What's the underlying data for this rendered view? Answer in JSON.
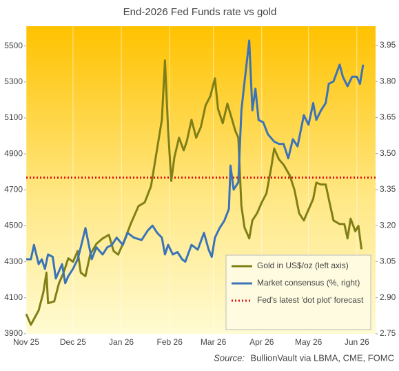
{
  "chart_data": {
    "type": "line",
    "title": "End-2026 Fed Funds rate vs gold",
    "source_label": "Source:",
    "source": "BullionVault via LBMA, CME, FOMC",
    "xlim": [
      0,
      224
    ],
    "xticks": [
      {
        "value": 0,
        "label": "Nov 25"
      },
      {
        "value": 30,
        "label": "Dec 25"
      },
      {
        "value": 61,
        "label": "Jan 26"
      },
      {
        "value": 92,
        "label": "Feb 26"
      },
      {
        "value": 120,
        "label": "Mar 26"
      },
      {
        "value": 151,
        "label": "Apr 26"
      },
      {
        "value": 181,
        "label": "May 26"
      },
      {
        "value": 212,
        "label": "Jun 26"
      }
    ],
    "ylim": [
      3900,
      5610
    ],
    "yticks": [
      3900,
      4100,
      4300,
      4500,
      4700,
      4900,
      5100,
      5300,
      5500
    ],
    "y2lim": [
      2.75,
      4.03
    ],
    "y2ticks": [
      2.75,
      {
        "value": 2.9,
        "label": "2.90"
      },
      3.05,
      {
        "value": 3.2,
        "label": "3.20"
      },
      3.35,
      {
        "value": 3.5,
        "label": "3.50"
      },
      3.65,
      {
        "value": 3.8,
        "label": "3.80"
      },
      3.95
    ],
    "grid": true,
    "legend": "lower right",
    "series": [
      {
        "name": "Gold in US$/oz (left axis)",
        "color": "#7f7f17",
        "axis": "y",
        "x": [
          0,
          3,
          8,
          11,
          13,
          14,
          18,
          21,
          24,
          27,
          30,
          33,
          35,
          38,
          41,
          45,
          49,
          53,
          56,
          59,
          63,
          67,
          72,
          76,
          80,
          84,
          87,
          89,
          91,
          93,
          95,
          98,
          101,
          103,
          106,
          109,
          112,
          115,
          118,
          121,
          123,
          126,
          129,
          132,
          134,
          136,
          138,
          140,
          143,
          145,
          148,
          151,
          154,
          157,
          159,
          162,
          165,
          169,
          172,
          175,
          178,
          181,
          184,
          186,
          189,
          192,
          194,
          197,
          201,
          204,
          206,
          208,
          211,
          213,
          215
        ],
        "values": [
          4010,
          3950,
          4030,
          4130,
          4240,
          4070,
          4080,
          4180,
          4240,
          4320,
          4300,
          4360,
          4240,
          4220,
          4340,
          4400,
          4430,
          4450,
          4360,
          4340,
          4420,
          4510,
          4610,
          4630,
          4720,
          4930,
          5090,
          5420,
          5030,
          4750,
          4880,
          4990,
          4920,
          4970,
          5090,
          4990,
          5050,
          5170,
          5220,
          5320,
          5150,
          5070,
          5180,
          5090,
          5030,
          4990,
          4610,
          4490,
          4430,
          4530,
          4570,
          4630,
          4680,
          4820,
          4930,
          4870,
          4840,
          4780,
          4700,
          4570,
          4530,
          4590,
          4650,
          4740,
          4730,
          4730,
          4650,
          4530,
          4510,
          4510,
          4430,
          4540,
          4470,
          4500,
          4370
        ]
      },
      {
        "name": "Market consensus (%, right)",
        "color": "#3a73b8",
        "axis": "y2",
        "x": [
          0,
          3,
          5,
          8,
          10,
          12,
          14,
          17,
          19,
          23,
          25,
          27,
          30,
          33,
          35,
          38,
          42,
          45,
          49,
          52,
          55,
          58,
          62,
          65,
          69,
          74,
          78,
          81,
          84,
          87,
          89,
          91,
          94,
          97,
          100,
          102,
          106,
          110,
          114,
          117,
          119,
          121,
          124,
          127,
          130,
          131,
          133,
          136,
          138,
          140,
          143,
          145,
          147,
          149,
          152,
          155,
          159,
          162,
          165,
          168,
          171,
          174,
          178,
          181,
          184,
          186,
          189,
          192,
          194,
          197,
          201,
          203,
          206,
          209,
          212,
          214,
          216
        ],
        "values": [
          3.06,
          3.06,
          3.12,
          3.04,
          3.06,
          3.02,
          3.08,
          3.07,
          2.98,
          3.04,
          2.96,
          2.99,
          3.02,
          3.06,
          3.11,
          3.19,
          3.06,
          3.11,
          3.08,
          3.11,
          3.12,
          3.15,
          3.12,
          3.17,
          3.15,
          3.14,
          3.18,
          3.2,
          3.17,
          3.15,
          3.08,
          3.12,
          3.08,
          3.09,
          3.06,
          3.05,
          3.12,
          3.1,
          3.17,
          3.1,
          3.07,
          3.15,
          3.19,
          3.22,
          3.27,
          3.45,
          3.35,
          3.38,
          3.68,
          3.8,
          3.97,
          3.68,
          3.77,
          3.64,
          3.63,
          3.58,
          3.55,
          3.54,
          3.54,
          3.48,
          3.56,
          3.53,
          3.66,
          3.62,
          3.71,
          3.64,
          3.68,
          3.71,
          3.79,
          3.8,
          3.87,
          3.82,
          3.78,
          3.82,
          3.82,
          3.79,
          3.87
        ]
      }
    ],
    "reference_lines": [
      {
        "name": "Fed's latest 'dot plot' forecast",
        "value": 3.4,
        "axis": "y2",
        "color": "#e01010",
        "style": "dotted"
      }
    ]
  }
}
